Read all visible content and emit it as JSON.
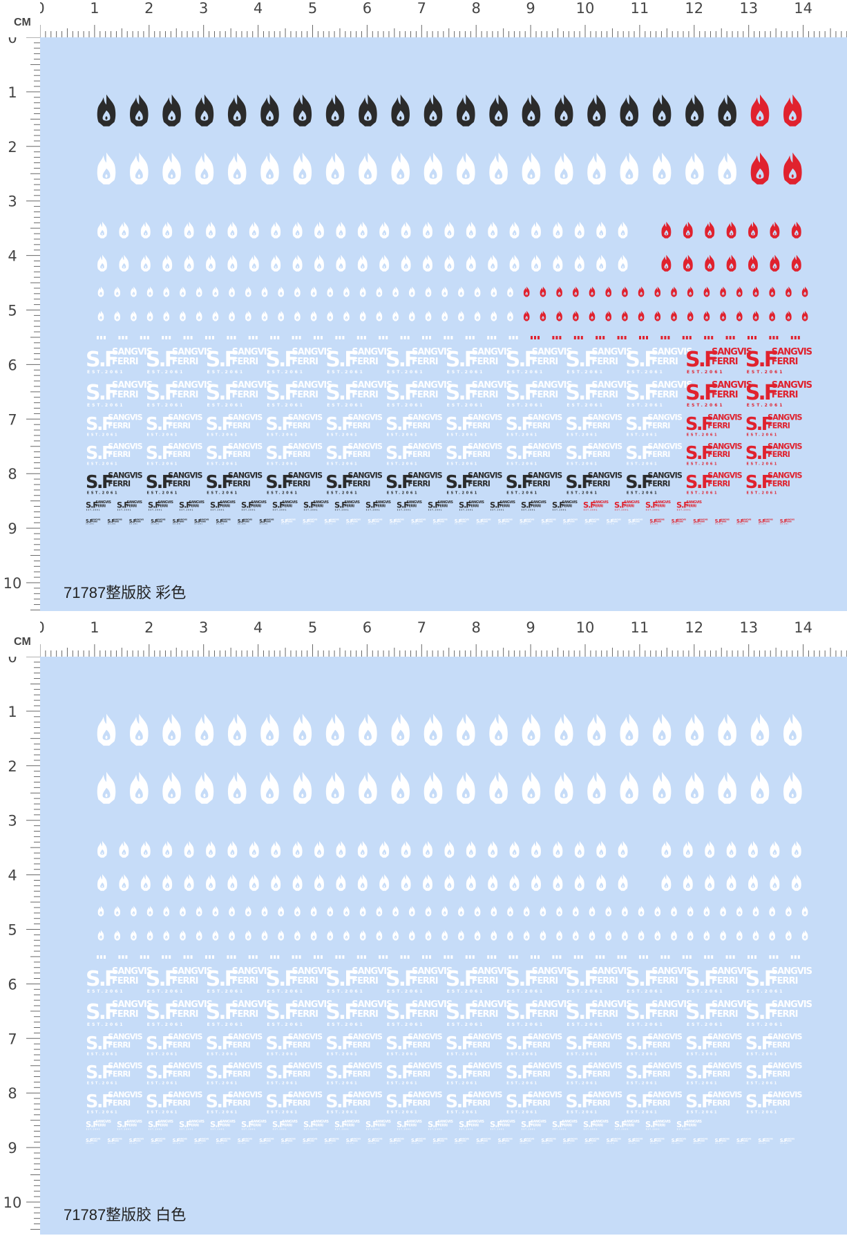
{
  "ruler": {
    "unit": "CM",
    "h_labels": [
      "0",
      "1",
      "2",
      "3",
      "4",
      "5",
      "6",
      "7",
      "8",
      "9",
      "10",
      "11",
      "12",
      "13",
      "14"
    ],
    "v_labels": [
      "0",
      "1",
      "2",
      "3",
      "4",
      "5",
      "6",
      "7",
      "8",
      "9",
      "10"
    ]
  },
  "sheets": [
    {
      "title": "71787整版胶 彩色",
      "variant": "color"
    },
    {
      "title": "71787整版胶 白色",
      "variant": "white"
    }
  ],
  "decal": {
    "logo_mark": "S.F",
    "logo_line1": "SANGVIS",
    "logo_line2": "FERRI",
    "logo_est": "EST.2061"
  },
  "colors": {
    "sheet_bg": "#c6dcf8",
    "white": "#ffffff",
    "black": "#2b2b2b",
    "red": "#e0222e"
  }
}
